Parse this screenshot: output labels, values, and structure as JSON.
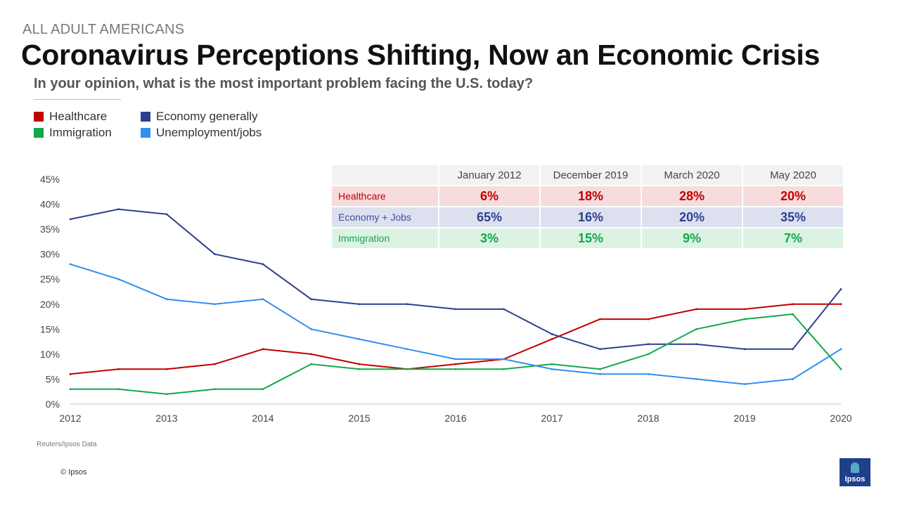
{
  "header": {
    "kicker": "ALL ADULT AMERICANS",
    "title": "Coronavirus Perceptions Shifting, Now an Economic Crisis",
    "subtitle": "In your opinion, what is the most important problem facing the U.S. today?"
  },
  "legend": [
    {
      "label": "Healthcare",
      "color": "#c00000"
    },
    {
      "label": "Economy generally",
      "color": "#2e3f8f"
    },
    {
      "label": "Immigration",
      "color": "#13a84a"
    },
    {
      "label": "Unemployment/jobs",
      "color": "#2f8ff0"
    }
  ],
  "table": {
    "columns": [
      "January 2012",
      "December 2019",
      "March 2020",
      "May 2020"
    ],
    "rows": [
      {
        "label": "Healthcare",
        "values": [
          "6%",
          "18%",
          "28%",
          "20%"
        ]
      },
      {
        "label": "Economy + Jobs",
        "values": [
          "65%",
          "16%",
          "20%",
          "35%"
        ]
      },
      {
        "label": "Immigration",
        "values": [
          "3%",
          "15%",
          "9%",
          "7%"
        ]
      }
    ]
  },
  "chart_data": {
    "type": "line",
    "title": "In your opinion, what is the most important problem facing the U.S. today?",
    "xlabel": "",
    "ylabel": "",
    "ylim": [
      0,
      45
    ],
    "yticks": [
      "0%",
      "5%",
      "10%",
      "15%",
      "20%",
      "25%",
      "30%",
      "35%",
      "40%",
      "45%"
    ],
    "xticks": [
      "2012",
      "2013",
      "2014",
      "2015",
      "2016",
      "2017",
      "2018",
      "2019",
      "2020"
    ],
    "x": [
      2012.0,
      2012.5,
      2013.0,
      2013.5,
      2014.0,
      2014.5,
      2015.0,
      2015.5,
      2016.0,
      2016.5,
      2017.0,
      2017.5,
      2018.0,
      2018.5,
      2019.0,
      2019.5,
      2020.0
    ],
    "series": [
      {
        "name": "Healthcare",
        "color": "#c00000",
        "values": [
          6,
          7,
          7,
          8,
          11,
          10,
          8,
          7,
          8,
          9,
          13,
          17,
          17,
          19,
          19,
          20,
          20
        ]
      },
      {
        "name": "Economy generally",
        "color": "#2e3f8f",
        "values": [
          37,
          39,
          38,
          30,
          28,
          21,
          20,
          20,
          19,
          19,
          14,
          11,
          12,
          12,
          11,
          11,
          23
        ]
      },
      {
        "name": "Immigration",
        "color": "#13a84a",
        "values": [
          3,
          3,
          2,
          3,
          3,
          8,
          7,
          7,
          7,
          7,
          8,
          7,
          10,
          15,
          17,
          18,
          7
        ]
      },
      {
        "name": "Unemployment/jobs",
        "color": "#2f8ff0",
        "values": [
          28,
          25,
          21,
          20,
          21,
          15,
          13,
          11,
          9,
          9,
          7,
          6,
          6,
          5,
          4,
          5,
          11
        ]
      }
    ]
  },
  "footer": {
    "source": "Reuters/Ipsos Data",
    "copyright": "© Ipsos",
    "logo_text": "Ipsos"
  }
}
